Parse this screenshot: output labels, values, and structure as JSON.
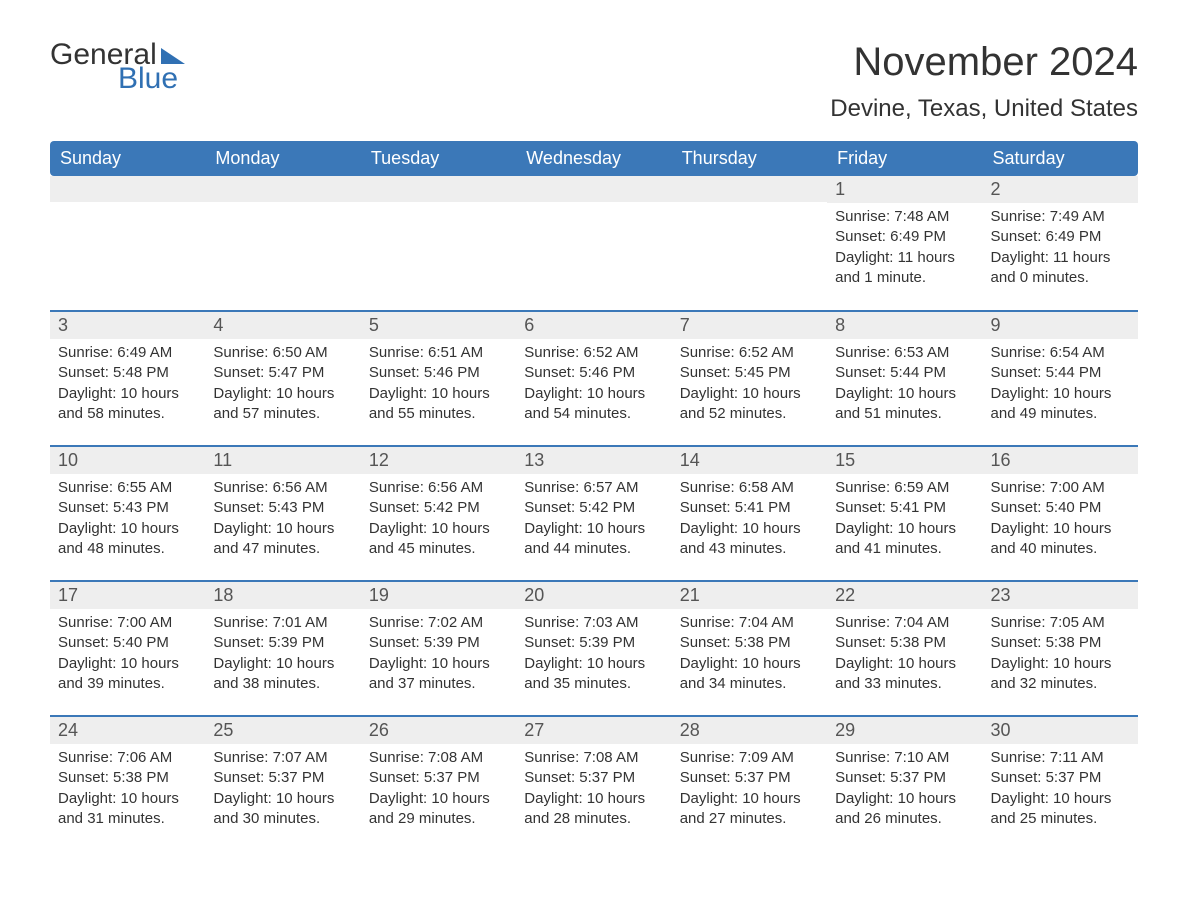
{
  "logo": {
    "part1": "General",
    "part2": "Blue"
  },
  "title": "November 2024",
  "location": "Devine, Texas, United States",
  "colors": {
    "header_bg": "#3b78b8",
    "header_text": "#ffffff",
    "daynum_bg": "#eeeeee",
    "border": "#3b78b8",
    "text": "#333333"
  },
  "weekdays": [
    "Sunday",
    "Monday",
    "Tuesday",
    "Wednesday",
    "Thursday",
    "Friday",
    "Saturday"
  ],
  "cells": [
    {
      "day": "",
      "sunrise": "",
      "sunset": "",
      "daylight": ""
    },
    {
      "day": "",
      "sunrise": "",
      "sunset": "",
      "daylight": ""
    },
    {
      "day": "",
      "sunrise": "",
      "sunset": "",
      "daylight": ""
    },
    {
      "day": "",
      "sunrise": "",
      "sunset": "",
      "daylight": ""
    },
    {
      "day": "",
      "sunrise": "",
      "sunset": "",
      "daylight": ""
    },
    {
      "day": "1",
      "sunrise": "Sunrise: 7:48 AM",
      "sunset": "Sunset: 6:49 PM",
      "daylight": "Daylight: 11 hours and 1 minute."
    },
    {
      "day": "2",
      "sunrise": "Sunrise: 7:49 AM",
      "sunset": "Sunset: 6:49 PM",
      "daylight": "Daylight: 11 hours and 0 minutes."
    },
    {
      "day": "3",
      "sunrise": "Sunrise: 6:49 AM",
      "sunset": "Sunset: 5:48 PM",
      "daylight": "Daylight: 10 hours and 58 minutes."
    },
    {
      "day": "4",
      "sunrise": "Sunrise: 6:50 AM",
      "sunset": "Sunset: 5:47 PM",
      "daylight": "Daylight: 10 hours and 57 minutes."
    },
    {
      "day": "5",
      "sunrise": "Sunrise: 6:51 AM",
      "sunset": "Sunset: 5:46 PM",
      "daylight": "Daylight: 10 hours and 55 minutes."
    },
    {
      "day": "6",
      "sunrise": "Sunrise: 6:52 AM",
      "sunset": "Sunset: 5:46 PM",
      "daylight": "Daylight: 10 hours and 54 minutes."
    },
    {
      "day": "7",
      "sunrise": "Sunrise: 6:52 AM",
      "sunset": "Sunset: 5:45 PM",
      "daylight": "Daylight: 10 hours and 52 minutes."
    },
    {
      "day": "8",
      "sunrise": "Sunrise: 6:53 AM",
      "sunset": "Sunset: 5:44 PM",
      "daylight": "Daylight: 10 hours and 51 minutes."
    },
    {
      "day": "9",
      "sunrise": "Sunrise: 6:54 AM",
      "sunset": "Sunset: 5:44 PM",
      "daylight": "Daylight: 10 hours and 49 minutes."
    },
    {
      "day": "10",
      "sunrise": "Sunrise: 6:55 AM",
      "sunset": "Sunset: 5:43 PM",
      "daylight": "Daylight: 10 hours and 48 minutes."
    },
    {
      "day": "11",
      "sunrise": "Sunrise: 6:56 AM",
      "sunset": "Sunset: 5:43 PM",
      "daylight": "Daylight: 10 hours and 47 minutes."
    },
    {
      "day": "12",
      "sunrise": "Sunrise: 6:56 AM",
      "sunset": "Sunset: 5:42 PM",
      "daylight": "Daylight: 10 hours and 45 minutes."
    },
    {
      "day": "13",
      "sunrise": "Sunrise: 6:57 AM",
      "sunset": "Sunset: 5:42 PM",
      "daylight": "Daylight: 10 hours and 44 minutes."
    },
    {
      "day": "14",
      "sunrise": "Sunrise: 6:58 AM",
      "sunset": "Sunset: 5:41 PM",
      "daylight": "Daylight: 10 hours and 43 minutes."
    },
    {
      "day": "15",
      "sunrise": "Sunrise: 6:59 AM",
      "sunset": "Sunset: 5:41 PM",
      "daylight": "Daylight: 10 hours and 41 minutes."
    },
    {
      "day": "16",
      "sunrise": "Sunrise: 7:00 AM",
      "sunset": "Sunset: 5:40 PM",
      "daylight": "Daylight: 10 hours and 40 minutes."
    },
    {
      "day": "17",
      "sunrise": "Sunrise: 7:00 AM",
      "sunset": "Sunset: 5:40 PM",
      "daylight": "Daylight: 10 hours and 39 minutes."
    },
    {
      "day": "18",
      "sunrise": "Sunrise: 7:01 AM",
      "sunset": "Sunset: 5:39 PM",
      "daylight": "Daylight: 10 hours and 38 minutes."
    },
    {
      "day": "19",
      "sunrise": "Sunrise: 7:02 AM",
      "sunset": "Sunset: 5:39 PM",
      "daylight": "Daylight: 10 hours and 37 minutes."
    },
    {
      "day": "20",
      "sunrise": "Sunrise: 7:03 AM",
      "sunset": "Sunset: 5:39 PM",
      "daylight": "Daylight: 10 hours and 35 minutes."
    },
    {
      "day": "21",
      "sunrise": "Sunrise: 7:04 AM",
      "sunset": "Sunset: 5:38 PM",
      "daylight": "Daylight: 10 hours and 34 minutes."
    },
    {
      "day": "22",
      "sunrise": "Sunrise: 7:04 AM",
      "sunset": "Sunset: 5:38 PM",
      "daylight": "Daylight: 10 hours and 33 minutes."
    },
    {
      "day": "23",
      "sunrise": "Sunrise: 7:05 AM",
      "sunset": "Sunset: 5:38 PM",
      "daylight": "Daylight: 10 hours and 32 minutes."
    },
    {
      "day": "24",
      "sunrise": "Sunrise: 7:06 AM",
      "sunset": "Sunset: 5:38 PM",
      "daylight": "Daylight: 10 hours and 31 minutes."
    },
    {
      "day": "25",
      "sunrise": "Sunrise: 7:07 AM",
      "sunset": "Sunset: 5:37 PM",
      "daylight": "Daylight: 10 hours and 30 minutes."
    },
    {
      "day": "26",
      "sunrise": "Sunrise: 7:08 AM",
      "sunset": "Sunset: 5:37 PM",
      "daylight": "Daylight: 10 hours and 29 minutes."
    },
    {
      "day": "27",
      "sunrise": "Sunrise: 7:08 AM",
      "sunset": "Sunset: 5:37 PM",
      "daylight": "Daylight: 10 hours and 28 minutes."
    },
    {
      "day": "28",
      "sunrise": "Sunrise: 7:09 AM",
      "sunset": "Sunset: 5:37 PM",
      "daylight": "Daylight: 10 hours and 27 minutes."
    },
    {
      "day": "29",
      "sunrise": "Sunrise: 7:10 AM",
      "sunset": "Sunset: 5:37 PM",
      "daylight": "Daylight: 10 hours and 26 minutes."
    },
    {
      "day": "30",
      "sunrise": "Sunrise: 7:11 AM",
      "sunset": "Sunset: 5:37 PM",
      "daylight": "Daylight: 10 hours and 25 minutes."
    }
  ]
}
